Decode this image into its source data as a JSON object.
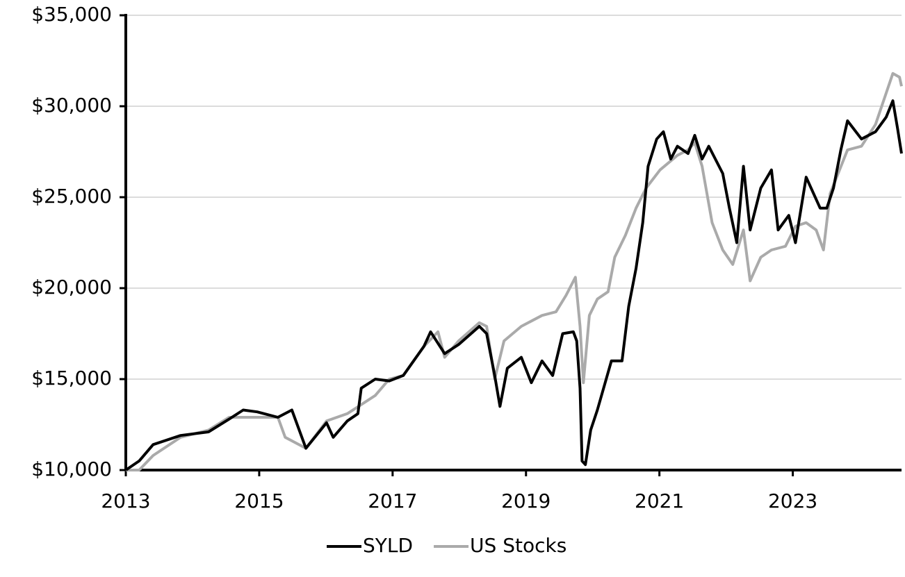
{
  "chart_data": {
    "type": "line",
    "xlim": [
      2013,
      2024.63
    ],
    "xticks": [
      2013,
      2015,
      2017,
      2019,
      2021,
      2023
    ],
    "ylim": [
      10000,
      35000
    ],
    "yticks": [
      {
        "value": 10000,
        "label": "$10,000"
      },
      {
        "value": 15000,
        "label": "$15,000"
      },
      {
        "value": 20000,
        "label": "$20,000"
      },
      {
        "value": 25000,
        "label": "$25,000"
      },
      {
        "value": 30000,
        "label": "$30,000"
      },
      {
        "value": 35000,
        "label": "$35,000"
      }
    ],
    "grid": true,
    "legend": "bottom",
    "series": [
      {
        "name": "SYLD",
        "color": "#000000",
        "x": [
          2013.0,
          2013.2,
          2013.41,
          2013.82,
          2014.24,
          2014.55,
          2014.76,
          2014.97,
          2015.28,
          2015.49,
          2015.7,
          2016.01,
          2016.11,
          2016.32,
          2016.48,
          2016.53,
          2016.74,
          2016.95,
          2017.16,
          2017.47,
          2017.57,
          2017.78,
          2017.99,
          2018.3,
          2018.41,
          2018.53,
          2018.61,
          2018.72,
          2018.93,
          2019.08,
          2019.24,
          2019.4,
          2019.55,
          2019.71,
          2019.76,
          2019.81,
          2019.84,
          2019.89,
          2019.97,
          2020.07,
          2020.28,
          2020.44,
          2020.54,
          2020.65,
          2020.75,
          2020.83,
          2020.96,
          2021.06,
          2021.17,
          2021.27,
          2021.43,
          2021.53,
          2021.64,
          2021.74,
          2021.95,
          2022.05,
          2022.16,
          2022.26,
          2022.36,
          2022.52,
          2022.68,
          2022.78,
          2022.94,
          2023.04,
          2023.2,
          2023.41,
          2023.51,
          2023.61,
          2023.72,
          2023.82,
          2024.03,
          2024.24,
          2024.4,
          2024.5,
          2024.57,
          2024.63
        ],
        "values": [
          10000,
          10500,
          11400,
          11900,
          12100,
          12800,
          13300,
          13200,
          12900,
          13300,
          11200,
          12600,
          11800,
          12700,
          13100,
          14500,
          15000,
          14900,
          15200,
          16800,
          17600,
          16400,
          16900,
          17900,
          17500,
          15200,
          13500,
          15600,
          16200,
          14800,
          16000,
          15200,
          17500,
          17600,
          17100,
          14500,
          10500,
          10300,
          12200,
          13300,
          16000,
          16000,
          19000,
          21100,
          23600,
          26700,
          28200,
          28600,
          27100,
          27800,
          27400,
          28400,
          27100,
          27800,
          26300,
          24400,
          22500,
          26700,
          23200,
          25500,
          26500,
          23200,
          24000,
          22500,
          26100,
          24400,
          24400,
          25500,
          27600,
          29200,
          28200,
          28600,
          29400,
          30300,
          28800,
          27400
        ]
      },
      {
        "name": "US Stocks",
        "color": "#aaaaaa",
        "x": [
          2013.0,
          2013.2,
          2013.41,
          2013.82,
          2014.24,
          2014.55,
          2014.86,
          2015.28,
          2015.39,
          2015.7,
          2016.01,
          2016.32,
          2016.74,
          2016.95,
          2017.16,
          2017.47,
          2017.68,
          2017.78,
          2017.99,
          2018.3,
          2018.41,
          2018.53,
          2018.67,
          2018.93,
          2019.24,
          2019.45,
          2019.6,
          2019.74,
          2019.81,
          2019.86,
          2019.95,
          2020.07,
          2020.23,
          2020.33,
          2020.49,
          2020.65,
          2020.8,
          2021.01,
          2021.27,
          2021.43,
          2021.53,
          2021.64,
          2021.79,
          2021.95,
          2022.1,
          2022.26,
          2022.36,
          2022.52,
          2022.68,
          2022.89,
          2023.04,
          2023.2,
          2023.35,
          2023.46,
          2023.56,
          2023.82,
          2024.03,
          2024.24,
          2024.5,
          2024.6,
          2024.63
        ],
        "values": [
          10000,
          10000,
          10800,
          11800,
          12200,
          12900,
          12900,
          12900,
          11800,
          11200,
          12700,
          13100,
          14100,
          15000,
          15200,
          16800,
          17600,
          16200,
          17100,
          18100,
          17900,
          15000,
          17100,
          17900,
          18500,
          18700,
          19600,
          20600,
          17900,
          14800,
          18500,
          19400,
          19800,
          21700,
          22900,
          24400,
          25500,
          26500,
          27300,
          27600,
          28000,
          26700,
          23600,
          22100,
          21300,
          23200,
          20400,
          21700,
          22100,
          22300,
          23400,
          23600,
          23200,
          22100,
          25200,
          27600,
          27800,
          29000,
          31800,
          31600,
          31100
        ]
      }
    ]
  }
}
